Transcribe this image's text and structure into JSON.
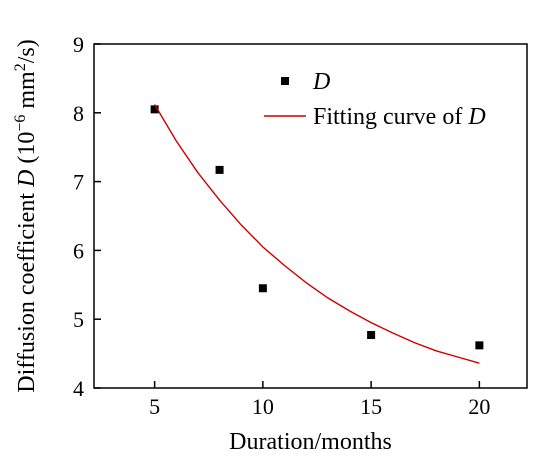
{
  "colors": {
    "marker": "#000000",
    "fit_curve": "#cc0000",
    "axis": "#000000",
    "background": "#ffffff"
  },
  "chart_data": {
    "type": "scatter",
    "title": "",
    "xlabel": "Duration/months",
    "ylabel": {
      "prefix": "Diffusion coefficient ",
      "symbol": "D",
      "unit_open": " (10",
      "exponent": "−6",
      "unit_mid": " mm",
      "unit_sq": "2",
      "unit_close": "/s)"
    },
    "xlim": [
      2.2,
      22.2
    ],
    "ylim": [
      4,
      9
    ],
    "xticks": [
      5,
      10,
      15,
      20
    ],
    "xtick_labels": [
      "5",
      "10",
      "15",
      "20"
    ],
    "yticks": [
      4,
      5,
      6,
      7,
      8,
      9
    ],
    "ytick_labels": [
      "4",
      "5",
      "6",
      "7",
      "8",
      "9"
    ],
    "grid": false,
    "legend_position": "top-right",
    "series": [
      {
        "name": "D",
        "kind": "points",
        "marker": "square",
        "x": [
          5,
          8,
          10,
          15,
          20
        ],
        "y": [
          8.05,
          7.17,
          5.45,
          4.77,
          4.62
        ]
      },
      {
        "name": "Fitting curve of D",
        "kind": "line",
        "x": [
          5,
          6,
          7,
          8,
          9,
          10,
          11,
          12,
          13,
          14,
          15,
          16,
          17,
          18,
          19,
          20
        ],
        "y": [
          8.12,
          7.59,
          7.13,
          6.73,
          6.37,
          6.05,
          5.78,
          5.53,
          5.31,
          5.12,
          4.95,
          4.8,
          4.66,
          4.54,
          4.45,
          4.36
        ]
      }
    ],
    "legend": {
      "marker_label": "D",
      "curve_label_text": "Fitting curve of ",
      "curve_label_symbol": "D"
    }
  }
}
